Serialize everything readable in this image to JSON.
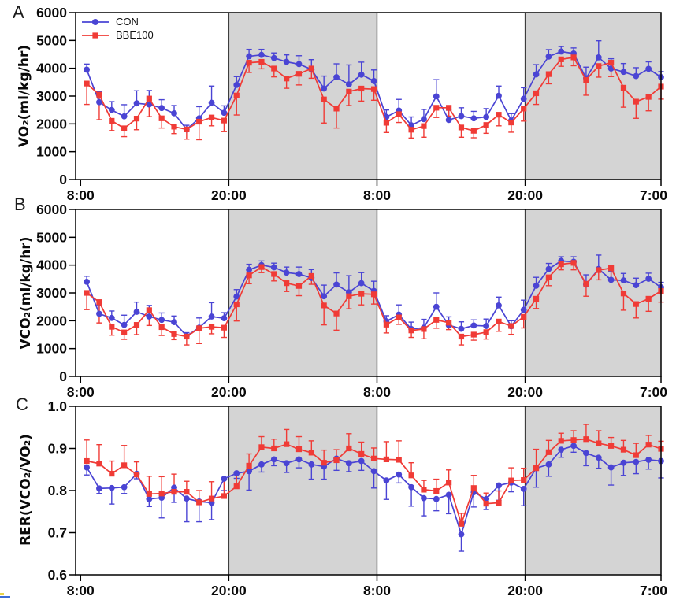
{
  "colors": {
    "con": "#4a44d4",
    "bbe": "#f03b36",
    "band": "#d4d4d4",
    "band_edge": "#3d3d3d",
    "frame": "#000000",
    "tick_text": "#0a0a0a"
  },
  "legend": {
    "items": [
      "CON",
      "BBE100"
    ]
  },
  "chart_data": [
    {
      "panel": "A",
      "type": "line",
      "ylabel": "VO₂(ml/kg/hr)",
      "ylim": [
        0,
        6000
      ],
      "yticks": [
        {
          "value": 0,
          "label": "0"
        },
        {
          "value": 1000,
          "label": "1000"
        },
        {
          "value": 2000,
          "label": "2000"
        },
        {
          "value": 3000,
          "label": "3000"
        },
        {
          "value": 4000,
          "label": "4000"
        },
        {
          "value": 5000,
          "label": "5000"
        },
        {
          "value": 6000,
          "label": "6000"
        }
      ],
      "xticks": [
        {
          "t": 0,
          "label": "8:00"
        },
        {
          "t": 12,
          "label": "20:00"
        },
        {
          "t": 24,
          "label": "8:00"
        },
        {
          "t": 36,
          "label": "20:00"
        },
        {
          "t": 47,
          "label": "7:00"
        }
      ],
      "dark_bands": [
        [
          12,
          24
        ],
        [
          36,
          47
        ]
      ],
      "show_legend": true,
      "series": [
        {
          "name": "CON",
          "color": "#4a44d4",
          "marker": "circle",
          "error_dir": "up",
          "values": [
            3950,
            2780,
            2500,
            2270,
            2740,
            2700,
            2570,
            2380,
            1800,
            2200,
            2760,
            2400,
            3400,
            4430,
            4480,
            4370,
            4230,
            4150,
            3960,
            3270,
            3680,
            3420,
            3770,
            3540,
            2250,
            2480,
            1950,
            2170,
            2990,
            2140,
            2280,
            2200,
            2250,
            3010,
            2120,
            2900,
            3780,
            4420,
            4600,
            4530,
            3640,
            4390,
            3990,
            3870,
            3720,
            3980,
            3680
          ],
          "errors": [
            200,
            380,
            300,
            420,
            450,
            500,
            300,
            280,
            150,
            420,
            600,
            250,
            300,
            250,
            200,
            180,
            250,
            300,
            350,
            450,
            480,
            700,
            450,
            400,
            250,
            400,
            300,
            350,
            600,
            350,
            300,
            250,
            300,
            350,
            250,
            400,
            350,
            250,
            180,
            200,
            400,
            600,
            350,
            300,
            300,
            250,
            200
          ]
        },
        {
          "name": "BBE100",
          "color": "#f03b36",
          "marker": "square",
          "error_dir": "down",
          "values": [
            3450,
            3050,
            2110,
            1840,
            2190,
            2910,
            2200,
            1900,
            1800,
            2080,
            2230,
            2120,
            3020,
            4200,
            4230,
            3990,
            3630,
            3800,
            3990,
            2880,
            2550,
            3160,
            3270,
            3250,
            2040,
            2350,
            1790,
            1920,
            2580,
            2580,
            1870,
            1750,
            1960,
            2330,
            2050,
            2550,
            3100,
            3790,
            4320,
            4390,
            3580,
            4080,
            4200,
            3300,
            2800,
            2970,
            3340
          ],
          "errors": [
            750,
            900,
            350,
            300,
            400,
            650,
            350,
            250,
            350,
            650,
            300,
            400,
            700,
            350,
            250,
            300,
            350,
            400,
            350,
            850,
            700,
            500,
            450,
            400,
            350,
            300,
            300,
            400,
            350,
            300,
            350,
            250,
            300,
            400,
            350,
            450,
            400,
            350,
            250,
            300,
            550,
            400,
            500,
            700,
            600,
            500,
            450
          ]
        }
      ]
    },
    {
      "panel": "B",
      "type": "line",
      "ylabel": "VCO₂(ml/kg/hr)",
      "ylim": [
        0,
        6000
      ],
      "yticks": [
        {
          "value": 0,
          "label": "0"
        },
        {
          "value": 1000,
          "label": "1000"
        },
        {
          "value": 2000,
          "label": "2000"
        },
        {
          "value": 3000,
          "label": "3000"
        },
        {
          "value": 4000,
          "label": "4000"
        },
        {
          "value": 5000,
          "label": "5000"
        },
        {
          "value": 6000,
          "label": "6000"
        }
      ],
      "xticks": [
        {
          "t": 0,
          "label": "8:00"
        },
        {
          "t": 12,
          "label": "20:00"
        },
        {
          "t": 24,
          "label": "8:00"
        },
        {
          "t": 36,
          "label": "20:00"
        },
        {
          "t": 47,
          "label": "7:00"
        }
      ],
      "dark_bands": [
        [
          12,
          24
        ],
        [
          36,
          47
        ]
      ],
      "show_legend": false,
      "series": [
        {
          "name": "CON",
          "color": "#4a44d4",
          "marker": "circle",
          "error_dir": "up",
          "values": [
            3400,
            2250,
            2100,
            1850,
            2320,
            2150,
            2030,
            1950,
            1450,
            1750,
            2150,
            2090,
            2870,
            3830,
            4000,
            3920,
            3730,
            3680,
            3540,
            2880,
            3300,
            3020,
            3350,
            3070,
            1980,
            2220,
            1700,
            1750,
            2500,
            1840,
            1710,
            1830,
            1810,
            2550,
            1800,
            2390,
            3260,
            3860,
            4150,
            4120,
            3300,
            3860,
            3470,
            3450,
            3280,
            3510,
            3200
          ],
          "errors": [
            200,
            300,
            250,
            350,
            350,
            400,
            250,
            220,
            120,
            350,
            500,
            200,
            250,
            200,
            150,
            150,
            200,
            250,
            300,
            400,
            420,
            600,
            380,
            350,
            200,
            350,
            250,
            300,
            500,
            300,
            250,
            200,
            250,
            300,
            200,
            350,
            300,
            200,
            150,
            180,
            350,
            500,
            300,
            250,
            250,
            200,
            180
          ]
        },
        {
          "name": "BBE100",
          "color": "#f03b36",
          "marker": "square",
          "error_dir": "down",
          "values": [
            3000,
            2670,
            1780,
            1580,
            1850,
            2380,
            1770,
            1520,
            1430,
            1730,
            1780,
            1750,
            2590,
            3630,
            3930,
            3680,
            3350,
            3250,
            3610,
            2550,
            2260,
            2880,
            2970,
            2950,
            1860,
            2120,
            1650,
            1700,
            2030,
            1930,
            1430,
            1500,
            1590,
            1970,
            1810,
            2140,
            2790,
            3560,
            4030,
            4080,
            3330,
            3820,
            3890,
            2980,
            2600,
            2790,
            3070
          ],
          "errors": [
            600,
            750,
            300,
            250,
            350,
            550,
            300,
            200,
            300,
            550,
            250,
            350,
            600,
            300,
            200,
            250,
            300,
            350,
            300,
            700,
            600,
            450,
            400,
            350,
            300,
            250,
            250,
            350,
            300,
            250,
            300,
            200,
            250,
            350,
            300,
            400,
            350,
            300,
            200,
            250,
            450,
            350,
            450,
            600,
            500,
            450,
            400
          ]
        }
      ]
    },
    {
      "panel": "C",
      "type": "line",
      "ylabel": "RER(VCO₂/VO₂)",
      "ylim": [
        0.6,
        1.0
      ],
      "yticks": [
        {
          "value": 0.6,
          "label": "0.6"
        },
        {
          "value": 0.7,
          "label": "0.7"
        },
        {
          "value": 0.8,
          "label": "0.8"
        },
        {
          "value": 0.9,
          "label": "0.9"
        },
        {
          "value": 1.0,
          "label": "1.0"
        }
      ],
      "xticks": [
        {
          "t": 0,
          "label": "8:00"
        },
        {
          "t": 12,
          "label": "20:00"
        },
        {
          "t": 24,
          "label": "8:00"
        },
        {
          "t": 36,
          "label": "20:00"
        },
        {
          "t": 47,
          "label": "7:00"
        }
      ],
      "dark_bands": [
        [
          12,
          24
        ],
        [
          36,
          47
        ]
      ],
      "show_legend": false,
      "series": [
        {
          "name": "CON",
          "color": "#4a44d4",
          "marker": "circle",
          "error_dir": "down",
          "values": [
            0.855,
            0.805,
            0.806,
            0.808,
            0.84,
            0.78,
            0.783,
            0.807,
            0.781,
            0.774,
            0.771,
            0.828,
            0.841,
            0.846,
            0.862,
            0.874,
            0.865,
            0.874,
            0.862,
            0.857,
            0.876,
            0.865,
            0.87,
            0.846,
            0.824,
            0.838,
            0.808,
            0.782,
            0.78,
            0.79,
            0.696,
            0.796,
            0.78,
            0.812,
            0.819,
            0.804,
            0.853,
            0.862,
            0.897,
            0.906,
            0.889,
            0.878,
            0.855,
            0.866,
            0.868,
            0.873,
            0.87
          ],
          "errors": [
            0.018,
            0.012,
            0.038,
            0.015,
            0.012,
            0.018,
            0.048,
            0.035,
            0.055,
            0.048,
            0.04,
            0.028,
            0.012,
            0.045,
            0.018,
            0.015,
            0.022,
            0.02,
            0.035,
            0.03,
            0.028,
            0.02,
            0.022,
            0.04,
            0.045,
            0.02,
            0.045,
            0.042,
            0.028,
            0.045,
            0.04,
            0.035,
            0.025,
            0.035,
            0.022,
            0.04,
            0.045,
            0.028,
            0.018,
            0.015,
            0.03,
            0.025,
            0.042,
            0.03,
            0.028,
            0.022,
            0.04
          ]
        },
        {
          "name": "BBE100",
          "color": "#f03b36",
          "marker": "square",
          "error_dir": "up",
          "values": [
            0.87,
            0.864,
            0.84,
            0.86,
            0.838,
            0.792,
            0.793,
            0.797,
            0.797,
            0.772,
            0.781,
            0.787,
            0.81,
            0.859,
            0.903,
            0.9,
            0.91,
            0.898,
            0.89,
            0.866,
            0.872,
            0.9,
            0.887,
            0.876,
            0.874,
            0.873,
            0.836,
            0.802,
            0.799,
            0.819,
            0.721,
            0.806,
            0.769,
            0.771,
            0.824,
            0.825,
            0.853,
            0.891,
            0.918,
            0.92,
            0.922,
            0.912,
            0.906,
            0.897,
            0.884,
            0.909,
            0.899
          ],
          "errors": [
            0.05,
            0.045,
            0.03,
            0.047,
            0.03,
            0.042,
            0.04,
            0.042,
            0.025,
            0.028,
            0.04,
            0.04,
            0.03,
            0.028,
            0.025,
            0.022,
            0.035,
            0.03,
            0.028,
            0.03,
            0.025,
            0.035,
            0.028,
            0.025,
            0.042,
            0.045,
            0.03,
            0.022,
            0.028,
            0.03,
            0.025,
            0.03,
            0.025,
            0.028,
            0.03,
            0.028,
            0.045,
            0.028,
            0.018,
            0.022,
            0.035,
            0.03,
            0.02,
            0.022,
            0.028,
            0.022,
            0.018
          ]
        }
      ]
    }
  ]
}
